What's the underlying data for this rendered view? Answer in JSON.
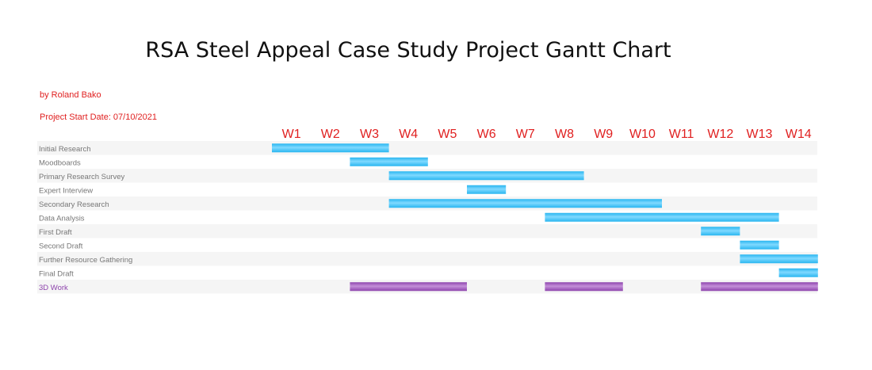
{
  "header": {
    "title": "RSA Steel Appeal Case Study Project Gantt Chart",
    "author": "by Roland Bako",
    "start_date": "Project Start Date: 07/10/2021"
  },
  "colors": {
    "task_bar": "#29b6f0",
    "task_bar_highlight": "#7fd9ff",
    "special_bar": "#8e44ad",
    "special_bar_highlight": "#c38fd8",
    "week_label": "#e02020",
    "task_label": "#777777",
    "special_label": "#8e44ad",
    "row_stripe": "#f5f5f5"
  },
  "chart_data": {
    "type": "gantt",
    "weeks": [
      "W1",
      "W2",
      "W3",
      "W4",
      "W5",
      "W6",
      "W7",
      "W8",
      "W9",
      "W10",
      "W11",
      "W12",
      "W13",
      "W14"
    ],
    "tasks": [
      {
        "name": "Initial Research",
        "segments": [
          [
            1,
            3
          ]
        ]
      },
      {
        "name": "Moodboards",
        "segments": [
          [
            3,
            4
          ]
        ]
      },
      {
        "name": "Primary Research Survey",
        "segments": [
          [
            4,
            8
          ]
        ]
      },
      {
        "name": "Expert Interview",
        "segments": [
          [
            6,
            6
          ]
        ]
      },
      {
        "name": "Secondary Research",
        "segments": [
          [
            4,
            10
          ]
        ]
      },
      {
        "name": "Data Analysis",
        "segments": [
          [
            8,
            13
          ]
        ]
      },
      {
        "name": "First Draft",
        "segments": [
          [
            12,
            12
          ]
        ]
      },
      {
        "name": "Second Draft",
        "segments": [
          [
            13,
            13
          ]
        ]
      },
      {
        "name": "Further Resource Gathering",
        "segments": [
          [
            13,
            14
          ]
        ]
      },
      {
        "name": "Final Draft",
        "segments": [
          [
            14,
            14
          ]
        ]
      },
      {
        "name": "3D Work",
        "segments": [
          [
            3,
            5
          ],
          [
            8,
            9
          ],
          [
            12,
            14
          ]
        ],
        "special": true
      }
    ]
  }
}
